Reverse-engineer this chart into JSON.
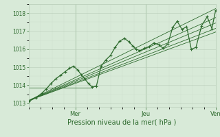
{
  "xlabel": "Pression niveau de la mer( hPa )",
  "bg_color": "#d8ead8",
  "grid_color_major": "#b8ccb8",
  "grid_color_minor": "#ccdccc",
  "line_color": "#2d6a2d",
  "ylim": [
    1012.8,
    1018.5
  ],
  "yticks": [
    1013,
    1014,
    1015,
    1016,
    1017,
    1018
  ],
  "xlim_days": [
    0.0,
    4.0
  ],
  "day_ticks": [
    1.0,
    2.5,
    4.0
  ],
  "day_labels": [
    "Mer",
    "Jeu",
    "Ven"
  ],
  "model_lines": [
    {
      "x0": 0.0,
      "y0": 1013.15,
      "x1": 4.0,
      "y1": 1018.25
    },
    {
      "x0": 0.0,
      "y0": 1013.15,
      "x1": 4.0,
      "y1": 1017.75
    },
    {
      "x0": 0.0,
      "y0": 1013.15,
      "x1": 4.0,
      "y1": 1017.45
    },
    {
      "x0": 0.0,
      "y0": 1013.15,
      "x1": 4.0,
      "y1": 1017.15
    },
    {
      "x0": 0.0,
      "y0": 1013.15,
      "x1": 4.0,
      "y1": 1016.95
    }
  ],
  "flat_line": {
    "x0": 0.0,
    "y0": 1013.85,
    "x1": 1.35,
    "y1": 1013.85
  },
  "main_x": [
    0.0,
    0.15,
    0.28,
    0.38,
    0.48,
    0.58,
    0.68,
    0.78,
    0.88,
    0.96,
    1.05,
    1.12,
    1.2,
    1.28,
    1.36,
    1.45,
    1.55,
    1.65,
    1.75,
    1.85,
    1.95,
    2.05,
    2.15,
    2.22,
    2.3,
    2.38,
    2.48,
    2.58,
    2.68,
    2.78,
    2.88,
    2.98,
    3.08,
    3.18,
    3.28,
    3.38,
    3.48,
    3.58,
    3.7,
    3.82,
    3.92,
    4.0
  ],
  "main_y": [
    1013.1,
    1013.3,
    1013.55,
    1013.8,
    1014.1,
    1014.35,
    1014.55,
    1014.75,
    1014.95,
    1015.05,
    1014.85,
    1014.6,
    1014.35,
    1014.1,
    1013.9,
    1013.95,
    1015.05,
    1015.4,
    1015.65,
    1016.1,
    1016.45,
    1016.6,
    1016.4,
    1016.2,
    1016.0,
    1015.92,
    1016.05,
    1016.15,
    1016.35,
    1016.25,
    1016.05,
    1016.3,
    1017.2,
    1017.55,
    1017.1,
    1017.25,
    1016.0,
    1016.1,
    1017.3,
    1017.8,
    1017.15,
    1018.15
  ]
}
